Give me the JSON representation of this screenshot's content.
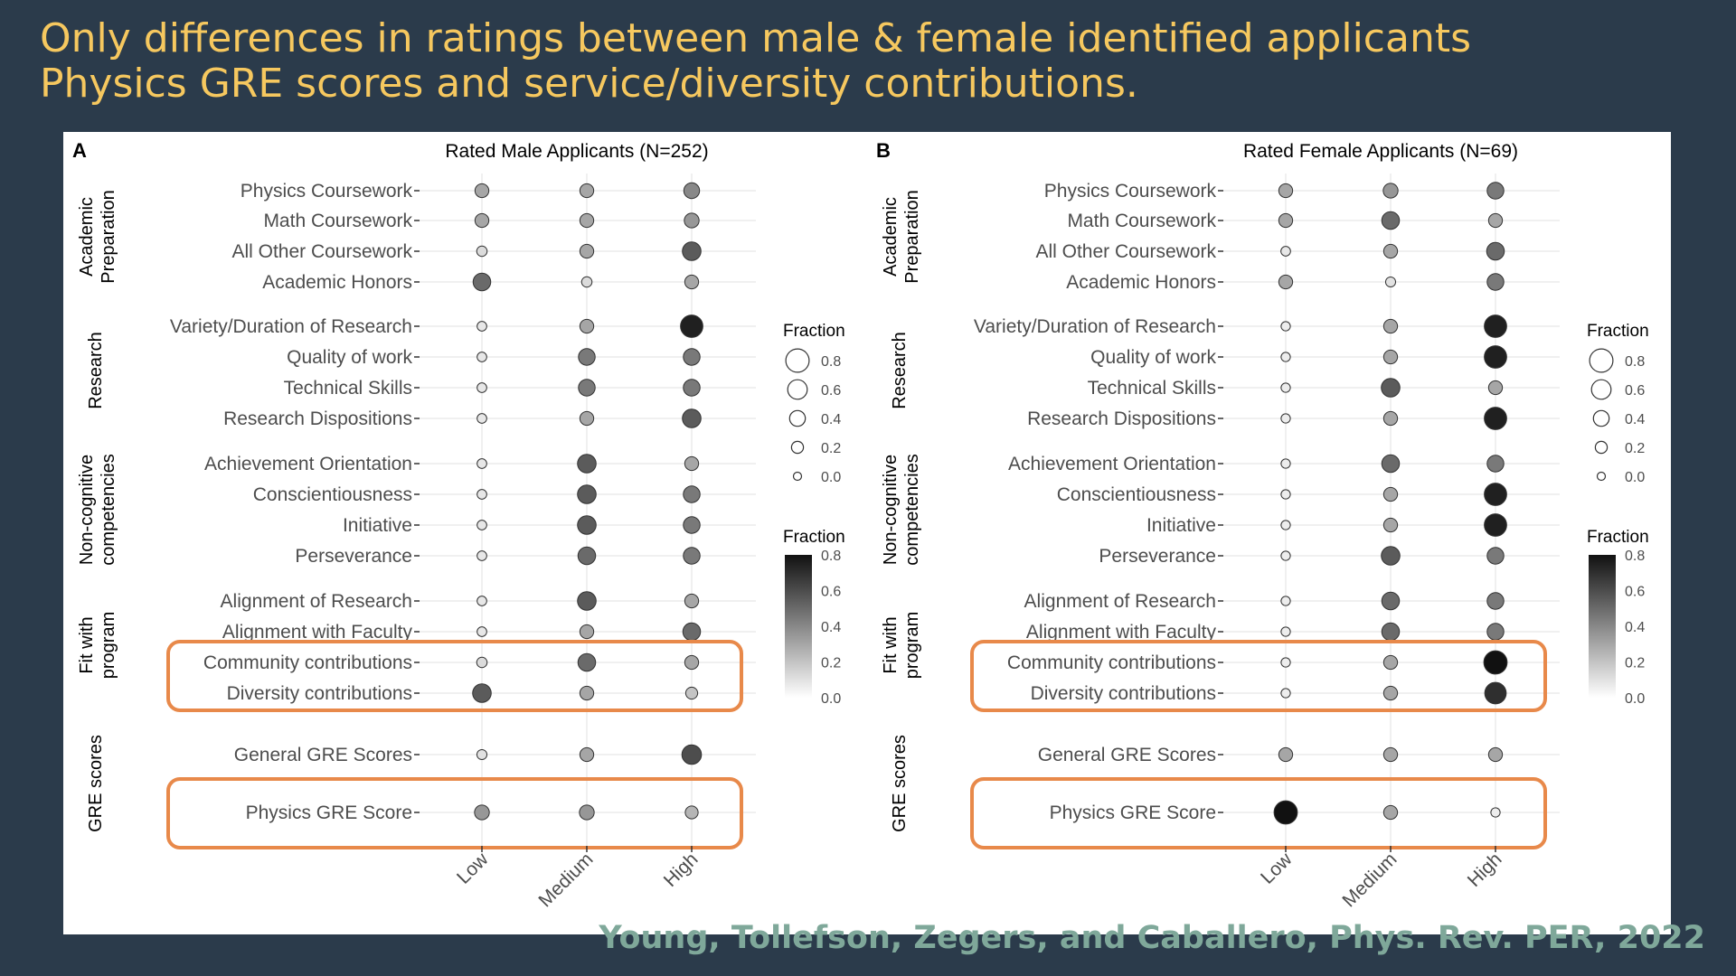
{
  "slide": {
    "title_line1": "Only differences in ratings between male & female identified applicants",
    "title_line2": "Physics GRE scores and service/diversity contributions.",
    "citation": "Young, Tollefson, Zegers, and Caballero, Phys. Rev. PER, 2022",
    "title_color": "#f6c85f",
    "background_color": "#2b3b4b",
    "citation_color": "#7fa89a",
    "highlight_color": "#e8894a"
  },
  "chart_data": [
    {
      "type": "scatter",
      "panel_label": "A",
      "title": "Rated Male Applicants (N=252)",
      "x_categories": [
        "Low",
        "Medium",
        "High"
      ],
      "groups": [
        {
          "name": "Academic Preparation",
          "label_lines": [
            "Academic",
            "Preparation"
          ],
          "items": [
            {
              "label": "Physics Coursework",
              "values": [
                0.3,
                0.3,
                0.4
              ]
            },
            {
              "label": "Math Coursework",
              "values": [
                0.3,
                0.3,
                0.35
              ]
            },
            {
              "label": "All Other Coursework",
              "values": [
                0.12,
                0.3,
                0.55
              ]
            },
            {
              "label": "Academic Honors",
              "values": [
                0.5,
                0.12,
                0.3
              ]
            }
          ]
        },
        {
          "name": "Research",
          "label_lines": [
            "Research"
          ],
          "items": [
            {
              "label": "Variety/Duration of Research",
              "values": [
                0.08,
                0.3,
                0.75
              ]
            },
            {
              "label": "Quality of work",
              "values": [
                0.08,
                0.45,
                0.45
              ]
            },
            {
              "label": "Technical Skills",
              "values": [
                0.08,
                0.45,
                0.45
              ]
            },
            {
              "label": "Research Dispositions",
              "values": [
                0.08,
                0.3,
                0.55
              ]
            }
          ]
        },
        {
          "name": "Non-cognitive competencies",
          "label_lines": [
            "Non-cognitive",
            "competencies"
          ],
          "items": [
            {
              "label": "Achievement Orientation",
              "values": [
                0.08,
                0.55,
                0.3
              ]
            },
            {
              "label": "Conscientiousness",
              "values": [
                0.08,
                0.55,
                0.45
              ]
            },
            {
              "label": "Initiative",
              "values": [
                0.08,
                0.55,
                0.45
              ]
            },
            {
              "label": "Perseverance",
              "values": [
                0.08,
                0.5,
                0.45
              ]
            }
          ]
        },
        {
          "name": "Fit with program",
          "label_lines": [
            "Fit with",
            "program"
          ],
          "items": [
            {
              "label": "Alignment of Research",
              "values": [
                0.08,
                0.55,
                0.3
              ]
            },
            {
              "label": "Alignment with Faculty",
              "values": [
                0.08,
                0.3,
                0.5
              ]
            },
            {
              "label": "Community contributions",
              "values": [
                0.12,
                0.5,
                0.3
              ]
            },
            {
              "label": "Diversity contributions",
              "values": [
                0.55,
                0.3,
                0.2
              ]
            }
          ]
        },
        {
          "name": "GRE scores",
          "label_lines": [
            "GRE scores"
          ],
          "items": [
            {
              "label": "General GRE Scores",
              "values": [
                0.1,
                0.3,
                0.6
              ]
            },
            {
              "label": "Physics GRE Score",
              "values": [
                0.35,
                0.35,
                0.25
              ]
            }
          ]
        }
      ],
      "highlighted_items": [
        "Community contributions",
        "Diversity contributions",
        "Physics GRE Score"
      ],
      "size_legend": {
        "title": "Fraction",
        "values": [
          0.8,
          0.6,
          0.4,
          0.2,
          0.0
        ]
      },
      "color_legend": {
        "title": "Fraction",
        "ticks": [
          0.8,
          0.6,
          0.4,
          0.2,
          0.0
        ],
        "range": [
          0,
          0.8
        ]
      }
    },
    {
      "type": "scatter",
      "panel_label": "B",
      "title": "Rated Female Applicants (N=69)",
      "x_categories": [
        "Low",
        "Medium",
        "High"
      ],
      "groups": [
        {
          "name": "Academic Preparation",
          "label_lines": [
            "Academic",
            "Preparation"
          ],
          "items": [
            {
              "label": "Physics Coursework",
              "values": [
                0.3,
                0.35,
                0.45
              ]
            },
            {
              "label": "Math Coursework",
              "values": [
                0.3,
                0.5,
                0.3
              ]
            },
            {
              "label": "All Other Coursework",
              "values": [
                0.08,
                0.3,
                0.5
              ]
            },
            {
              "label": "Academic Honors",
              "values": [
                0.3,
                0.1,
                0.45
              ]
            }
          ]
        },
        {
          "name": "Research",
          "label_lines": [
            "Research"
          ],
          "items": [
            {
              "label": "Variety/Duration of Research",
              "values": [
                0.06,
                0.3,
                0.75
              ]
            },
            {
              "label": "Quality of work",
              "values": [
                0.06,
                0.3,
                0.75
              ]
            },
            {
              "label": "Technical Skills",
              "values": [
                0.06,
                0.55,
                0.3
              ]
            },
            {
              "label": "Research Dispositions",
              "values": [
                0.06,
                0.3,
                0.75
              ]
            }
          ]
        },
        {
          "name": "Non-cognitive competencies",
          "label_lines": [
            "Non-cognitive",
            "competencies"
          ],
          "items": [
            {
              "label": "Achievement Orientation",
              "values": [
                0.06,
                0.5,
                0.45
              ]
            },
            {
              "label": "Conscientiousness",
              "values": [
                0.06,
                0.3,
                0.75
              ]
            },
            {
              "label": "Initiative",
              "values": [
                0.06,
                0.3,
                0.75
              ]
            },
            {
              "label": "Perseverance",
              "values": [
                0.06,
                0.55,
                0.45
              ]
            }
          ]
        },
        {
          "name": "Fit with program",
          "label_lines": [
            "Fit with",
            "program"
          ],
          "items": [
            {
              "label": "Alignment of Research",
              "values": [
                0.06,
                0.5,
                0.45
              ]
            },
            {
              "label": "Alignment with Faculty",
              "values": [
                0.06,
                0.5,
                0.45
              ]
            },
            {
              "label": "Community contributions",
              "values": [
                0.06,
                0.3,
                0.8
              ]
            },
            {
              "label": "Diversity contributions",
              "values": [
                0.06,
                0.3,
                0.7
              ]
            }
          ]
        },
        {
          "name": "GRE scores",
          "label_lines": [
            "GRE scores"
          ],
          "items": [
            {
              "label": "General GRE Scores",
              "values": [
                0.3,
                0.3,
                0.3
              ]
            },
            {
              "label": "Physics GRE Score",
              "values": [
                0.8,
                0.3,
                0.06
              ]
            }
          ]
        }
      ],
      "highlighted_items": [
        "Community contributions",
        "Diversity contributions",
        "Physics GRE Score"
      ],
      "size_legend": {
        "title": "Fraction",
        "values": [
          0.8,
          0.6,
          0.4,
          0.2,
          0.0
        ]
      },
      "color_legend": {
        "title": "Fraction",
        "ticks": [
          0.8,
          0.6,
          0.4,
          0.2,
          0.0
        ],
        "range": [
          0,
          0.8
        ]
      }
    }
  ]
}
